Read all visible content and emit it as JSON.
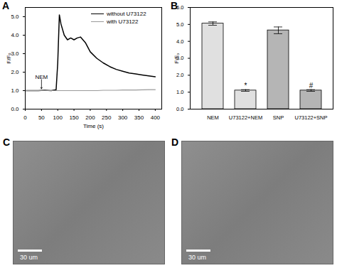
{
  "chart_data": [
    {
      "type": "line",
      "title": "A",
      "xlabel": "Time (s)",
      "ylabel": "F/F₀",
      "x": [
        0,
        20,
        40,
        60,
        80,
        95,
        100,
        105,
        110,
        120,
        130,
        140,
        150,
        160,
        170,
        185,
        200,
        220,
        240,
        260,
        280,
        300,
        320,
        340,
        360,
        380,
        400
      ],
      "series": [
        {
          "name": "without U73122",
          "color": "#000000",
          "values": [
            1.0,
            1.0,
            1.0,
            1.02,
            1.0,
            1.05,
            2.5,
            5.1,
            4.6,
            4.0,
            3.75,
            3.85,
            3.75,
            3.85,
            3.9,
            3.6,
            3.1,
            2.75,
            2.5,
            2.3,
            2.15,
            2.05,
            1.95,
            1.9,
            1.85,
            1.8,
            1.75
          ]
        },
        {
          "name": "with U73122",
          "color": "#999999",
          "values": [
            1.0,
            1.0,
            1.0,
            1.0,
            1.0,
            1.0,
            1.0,
            1.0,
            1.0,
            1.0,
            1.0,
            1.0,
            1.0,
            1.0,
            1.0,
            1.0,
            1.0,
            1.0,
            1.02,
            1.02,
            1.02,
            1.03,
            1.03,
            1.03,
            1.04,
            1.05,
            1.05
          ]
        }
      ],
      "xlim": [
        0,
        420
      ],
      "xticks": [
        0,
        50,
        100,
        150,
        200,
        250,
        300,
        350,
        400
      ],
      "ylim": [
        0,
        5.5
      ],
      "yticks": [
        0,
        1,
        2,
        3,
        4,
        5
      ],
      "legend": "top-right",
      "annotations": [
        {
          "text": "NEM",
          "x": 50,
          "y": 1.6,
          "arrow_to": 1.1
        }
      ]
    },
    {
      "type": "bar",
      "title": "B",
      "ylabel": "F/F₀",
      "categories": [
        "NEM",
        "U73122+NEM",
        "SNP",
        "U73122+SNP"
      ],
      "values": [
        5.05,
        1.1,
        4.65,
        1.1
      ],
      "errors": [
        0.1,
        0.05,
        0.2,
        0.05
      ],
      "colors": [
        "#e0e0e0",
        "#e0e0e0",
        "#b5b5b5",
        "#b5b5b5"
      ],
      "ylim": [
        0,
        6
      ],
      "yticks": [
        0,
        1,
        2,
        3,
        4,
        5,
        6
      ],
      "annotations": [
        {
          "category": "U73122+NEM",
          "text": "*"
        },
        {
          "category": "U73122+SNP",
          "text": "#"
        }
      ]
    }
  ],
  "images": [
    {
      "label": "C",
      "scale_bar": "30 um"
    },
    {
      "label": "D",
      "scale_bar": "30 um"
    }
  ]
}
